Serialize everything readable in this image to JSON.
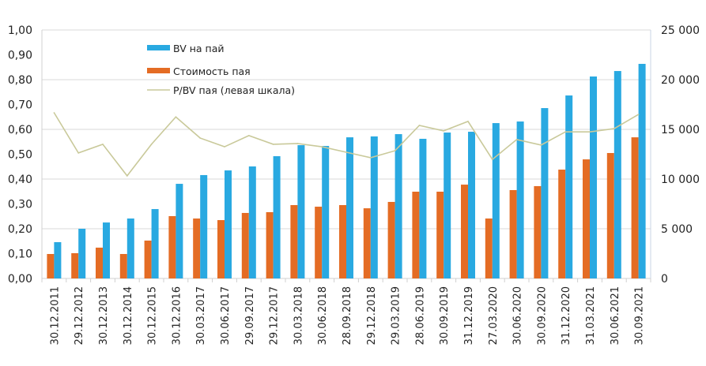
{
  "chart_data": {
    "type": "bar",
    "title": "",
    "xlabel": "",
    "ylabel_left": "",
    "ylabel_right": "",
    "categories": [
      "30.12.2011",
      "29.12.2012",
      "30.12.2013",
      "30.12.2014",
      "30.12.2015",
      "30.12.2016",
      "30.03.2017",
      "30.06.2017",
      "29.09.2017",
      "29.12.2017",
      "30.03.2018",
      "30.06.2018",
      "28.09.2018",
      "29.12.2018",
      "29.03.2019",
      "28.06.2019",
      "30.09.2019",
      "31.12.2019",
      "27.03.2020",
      "30.06.2020",
      "30.09.2020",
      "31.12.2020",
      "31.03.2021",
      "30.06.2021",
      "30.09.2021"
    ],
    "series": [
      {
        "name": "Стоимость пая",
        "type": "bar",
        "axis": "right",
        "color": "#E46C24",
        "values": [
          2460,
          2540,
          3100,
          2460,
          3810,
          6270,
          6030,
          5870,
          6590,
          6670,
          7380,
          7220,
          7380,
          7060,
          7700,
          8730,
          8730,
          9440,
          6030,
          8890,
          9290,
          10950,
          11980,
          12620,
          14200
        ]
      },
      {
        "name": "BV  на пай",
        "type": "bar",
        "axis": "right",
        "color": "#29A9E1",
        "values": [
          3650,
          5000,
          5630,
          6030,
          6980,
          9520,
          10400,
          10870,
          11270,
          12300,
          13410,
          13330,
          14200,
          14290,
          14520,
          14050,
          14680,
          14760,
          15630,
          15790,
          17140,
          18410,
          20320,
          20870,
          21590
        ]
      },
      {
        "name": "P/BV пая (левая шкала)",
        "type": "line",
        "axis": "left",
        "color": "#C9C99A",
        "values": [
          0.667,
          0.505,
          0.54,
          0.413,
          0.54,
          0.65,
          0.565,
          0.53,
          0.575,
          0.54,
          0.543,
          0.53,
          0.508,
          0.486,
          0.514,
          0.616,
          0.594,
          0.632,
          0.479,
          0.559,
          0.537,
          0.59,
          0.59,
          0.603,
          0.66
        ]
      }
    ],
    "y_left": {
      "ylim": [
        0,
        1.0
      ],
      "ticks": [
        "0,00",
        "0,10",
        "0,20",
        "0,30",
        "0,40",
        "0,50",
        "0,60",
        "0,70",
        "0,80",
        "0,90",
        "1,00"
      ]
    },
    "y_right": {
      "ylim": [
        0,
        25000
      ],
      "ticks": [
        "0",
        "5 000",
        "10 000",
        "15 000",
        "20 000",
        "25 000"
      ]
    },
    "grid": true,
    "legend": {
      "placement": "top-left",
      "entries": [
        {
          "label": "BV  на пай",
          "kind": "bar",
          "color": "#29A9E1"
        },
        {
          "label": "Стоимость пая",
          "kind": "bar",
          "color": "#E46C24"
        },
        {
          "label": "P/BV пая (левая шкала)",
          "kind": "line",
          "color": "#C9C99A"
        }
      ]
    }
  }
}
